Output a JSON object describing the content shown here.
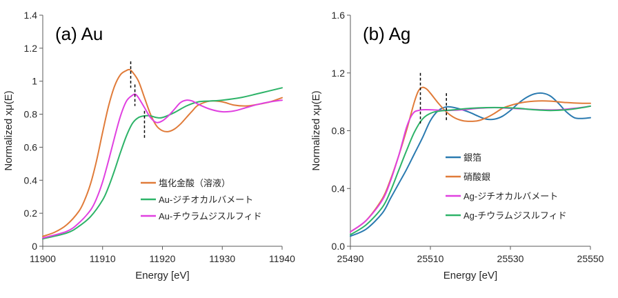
{
  "chart_data": [
    {
      "type": "line",
      "panel_label": "(a) Au",
      "xlabel": "Energy [eV]",
      "ylabel": "Normalized xμ(E)",
      "xlim": [
        11900,
        11940
      ],
      "ylim": [
        0,
        1.4
      ],
      "xticks": [
        11900,
        11910,
        11920,
        11930,
        11940
      ],
      "xtick_labels": [
        "11900",
        "11910",
        "11920",
        "11930",
        "11940"
      ],
      "yticks": [
        0,
        0.2,
        0.4,
        0.6,
        0.8,
        1.0,
        1.2,
        1.4
      ],
      "ytick_labels": [
        "0",
        "0.2",
        "0.4",
        "0.6",
        "0.8",
        "1",
        "1.2",
        "1.4"
      ],
      "grid": false,
      "legend_position": "bottom-right",
      "dashed_markers": [
        {
          "x": 11914.7,
          "y_range": [
            0.96,
            1.12
          ]
        },
        {
          "x": 11915.4,
          "y_range": [
            0.85,
            0.98
          ]
        },
        {
          "x": 11917.0,
          "y_range": [
            0.65,
            0.82
          ]
        }
      ],
      "series": [
        {
          "name": "塩化金酸（溶液）",
          "color": "#e07b39",
          "x": [
            11900,
            11902,
            11904,
            11906,
            11907,
            11908,
            11909,
            11910,
            11911,
            11912,
            11913,
            11914,
            11914.5,
            11915,
            11916,
            11917,
            11918,
            11919,
            11920,
            11921,
            11922,
            11923,
            11924,
            11925,
            11926,
            11928,
            11930,
            11932,
            11934,
            11936,
            11938,
            11940
          ],
          "y": [
            0.06,
            0.085,
            0.13,
            0.21,
            0.28,
            0.38,
            0.52,
            0.69,
            0.85,
            0.97,
            1.04,
            1.065,
            1.07,
            1.055,
            1.0,
            0.9,
            0.8,
            0.73,
            0.7,
            0.695,
            0.71,
            0.74,
            0.78,
            0.82,
            0.855,
            0.88,
            0.875,
            0.855,
            0.85,
            0.86,
            0.875,
            0.9
          ]
        },
        {
          "name": "Au-ジチオカルバメート",
          "color": "#2db368",
          "x": [
            11900,
            11904,
            11906,
            11908,
            11910,
            11911,
            11912,
            11913,
            11914,
            11915,
            11916,
            11917,
            11918,
            11919,
            11920,
            11922,
            11924,
            11926,
            11928,
            11930,
            11933,
            11936,
            11940
          ],
          "y": [
            0.045,
            0.08,
            0.12,
            0.18,
            0.28,
            0.36,
            0.46,
            0.57,
            0.67,
            0.745,
            0.78,
            0.79,
            0.79,
            0.78,
            0.78,
            0.81,
            0.85,
            0.875,
            0.88,
            0.885,
            0.9,
            0.925,
            0.96
          ]
        },
        {
          "name": "Au-チウラムジスルフィド",
          "color": "#e040e0",
          "x": [
            11900,
            11904,
            11906,
            11908,
            11909,
            11910,
            11911,
            11912,
            11913,
            11914,
            11915,
            11915.5,
            11916,
            11917,
            11918,
            11919,
            11920,
            11921,
            11922,
            11923,
            11924,
            11925,
            11926,
            11928,
            11930,
            11932,
            11934,
            11936,
            11938,
            11940
          ],
          "y": [
            0.05,
            0.09,
            0.14,
            0.22,
            0.29,
            0.39,
            0.52,
            0.66,
            0.79,
            0.88,
            0.915,
            0.92,
            0.9,
            0.84,
            0.78,
            0.75,
            0.76,
            0.79,
            0.83,
            0.87,
            0.885,
            0.88,
            0.86,
            0.83,
            0.815,
            0.82,
            0.84,
            0.86,
            0.875,
            0.885
          ]
        }
      ]
    },
    {
      "type": "line",
      "panel_label": "(b) Ag",
      "xlabel": "Energy [eV]",
      "ylabel": "Normalized xμ(E)",
      "xlim": [
        25490,
        25550
      ],
      "ylim": [
        0,
        1.6
      ],
      "xticks": [
        25490,
        25510,
        25530,
        25550
      ],
      "xtick_labels": [
        "25490",
        "25510",
        "25530",
        "25550"
      ],
      "yticks": [
        0,
        0.4,
        0.8,
        1.2,
        1.6
      ],
      "ytick_labels": [
        "0.0",
        "0.4",
        "0.8",
        "1.2",
        "1.6"
      ],
      "grid": false,
      "legend_position": "bottom-right",
      "dashed_markers": [
        {
          "x": 25507.5,
          "y_range": [
            0.85,
            1.2
          ]
        },
        {
          "x": 25514,
          "y_range": [
            0.87,
            1.06
          ]
        }
      ],
      "series": [
        {
          "name": "銀箔",
          "color": "#2a7ab0",
          "x": [
            25490,
            25494,
            25498,
            25500,
            25502,
            25504,
            25506,
            25508,
            25510,
            25512,
            25514,
            25516,
            25518,
            25520,
            25522,
            25524,
            25526,
            25528,
            25530,
            25532,
            25534,
            25536,
            25538,
            25540,
            25542,
            25544,
            25546,
            25548,
            25550
          ],
          "y": [
            0.07,
            0.12,
            0.23,
            0.33,
            0.43,
            0.53,
            0.64,
            0.75,
            0.87,
            0.94,
            0.965,
            0.96,
            0.945,
            0.925,
            0.9,
            0.88,
            0.88,
            0.9,
            0.94,
            0.99,
            1.03,
            1.055,
            1.06,
            1.04,
            0.99,
            0.93,
            0.89,
            0.885,
            0.89
          ]
        },
        {
          "name": "硝酸銀",
          "color": "#e07b39",
          "x": [
            25490,
            25494,
            25498,
            25500,
            25502,
            25504,
            25505,
            25506,
            25507,
            25508,
            25509,
            25510,
            25512,
            25514,
            25516,
            25518,
            25520,
            25522,
            25524,
            25526,
            25528,
            25530,
            25533,
            25536,
            25540,
            25544,
            25548,
            25550
          ],
          "y": [
            0.1,
            0.18,
            0.33,
            0.46,
            0.62,
            0.8,
            0.9,
            1.0,
            1.075,
            1.1,
            1.09,
            1.06,
            0.99,
            0.93,
            0.89,
            0.87,
            0.865,
            0.87,
            0.89,
            0.92,
            0.955,
            0.975,
            0.995,
            1.005,
            1.005,
            0.995,
            0.99,
            0.99
          ]
        },
        {
          "name": "Ag-ジチオカルバメート",
          "color": "#e040e0",
          "x": [
            25490,
            25494,
            25498,
            25500,
            25502,
            25503,
            25504,
            25505,
            25506,
            25507,
            25508,
            25510,
            25514,
            25518,
            25522,
            25526,
            25530,
            25534,
            25538,
            25542,
            25546,
            25550
          ],
          "y": [
            0.1,
            0.18,
            0.32,
            0.45,
            0.62,
            0.72,
            0.82,
            0.89,
            0.93,
            0.94,
            0.945,
            0.945,
            0.94,
            0.945,
            0.955,
            0.96,
            0.955,
            0.95,
            0.945,
            0.945,
            0.955,
            0.97
          ]
        },
        {
          "name": "Ag-チウラムジスルフィド",
          "color": "#2db368",
          "x": [
            25490,
            25494,
            25498,
            25500,
            25502,
            25504,
            25506,
            25508,
            25510,
            25512,
            25516,
            25520,
            25524,
            25528,
            25532,
            25536,
            25540,
            25544,
            25548,
            25550
          ],
          "y": [
            0.08,
            0.15,
            0.27,
            0.38,
            0.52,
            0.66,
            0.79,
            0.88,
            0.92,
            0.935,
            0.945,
            0.955,
            0.96,
            0.96,
            0.955,
            0.945,
            0.94,
            0.945,
            0.96,
            0.97
          ]
        }
      ]
    }
  ]
}
